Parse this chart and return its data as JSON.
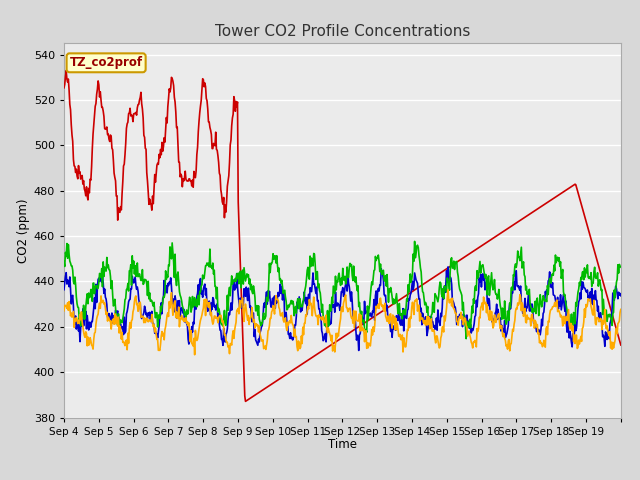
{
  "title": "Tower CO2 Profile Concentrations",
  "xlabel": "Time",
  "ylabel": "CO2 (ppm)",
  "ylim": [
    380,
    545
  ],
  "yticks": [
    380,
    400,
    420,
    440,
    460,
    480,
    500,
    520,
    540
  ],
  "xtick_labels": [
    "Sep 4",
    "Sep 5",
    "Sep 6",
    "Sep 7",
    "Sep 8",
    "Sep 9",
    "Sep 10",
    "Sep 11",
    "Sep 12",
    "Sep 13",
    "Sep 14",
    "Sep 15",
    "Sep 16",
    "Sep 17",
    "Sep 18",
    "Sep 19"
  ],
  "legend_label": "TZ_co2prof",
  "series": {
    "0.35m": {
      "color": "#cc0000",
      "linewidth": 1.2
    },
    "1.8m": {
      "color": "#0000cc",
      "linewidth": 1.2
    },
    "6.0m": {
      "color": "#00bb00",
      "linewidth": 1.2
    },
    "23.5m": {
      "color": "#ffaa00",
      "linewidth": 1.2
    }
  },
  "background_color": "#d8d8d8",
  "plot_bg_color": "#ebebeb",
  "grid_color": "#ffffff"
}
